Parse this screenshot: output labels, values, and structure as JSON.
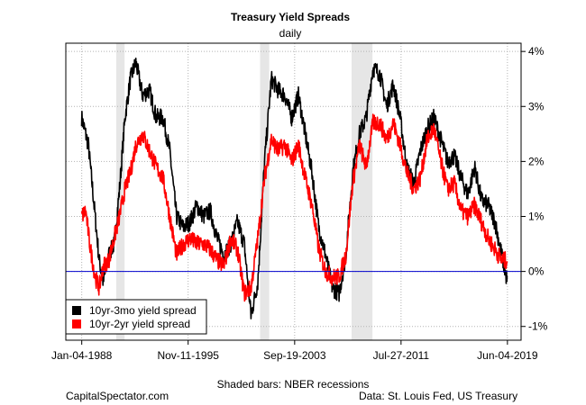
{
  "chart_data": {
    "type": "line",
    "title": "Treasury Yield Spreads",
    "subtitle": "daily",
    "xlabel": "",
    "ylabel": "",
    "x_ticks": [
      "Jan-04-1988",
      "Nov-11-1995",
      "Sep-19-2003",
      "Jul-27-2011",
      "Jun-04-2019"
    ],
    "x_tick_years": [
      1988.01,
      1995.86,
      2003.72,
      2011.57,
      2019.42
    ],
    "xlim": [
      1988.01,
      2019.42
    ],
    "y_ticks": [
      "4%",
      "3%",
      "2%",
      "1%",
      "0%",
      "-1%"
    ],
    "y_tick_values": [
      4,
      3,
      2,
      1,
      0,
      -1
    ],
    "ylim": [
      -1.25,
      4.15
    ],
    "grid": true,
    "legend_position": "bottom-left",
    "recessions": [
      [
        1990.55,
        1991.17
      ],
      [
        2001.17,
        2001.84
      ],
      [
        2007.92,
        2009.46
      ]
    ],
    "series": [
      {
        "name": "10yr-3mo yield spread",
        "color": "#000000",
        "x": [
          1988.0,
          1988.5,
          1989.0,
          1989.3,
          1989.6,
          1990.0,
          1990.4,
          1990.8,
          1991.2,
          1991.6,
          1992.0,
          1992.5,
          1993.0,
          1993.5,
          1994.0,
          1994.5,
          1995.0,
          1995.5,
          1996.0,
          1996.5,
          1997.0,
          1997.5,
          1998.0,
          1998.5,
          1999.0,
          1999.5,
          2000.0,
          2000.5,
          2001.0,
          2001.5,
          2002.0,
          2002.5,
          2003.0,
          2003.5,
          2004.0,
          2004.5,
          2005.0,
          2005.5,
          2006.0,
          2006.5,
          2007.0,
          2007.5,
          2008.0,
          2008.5,
          2009.0,
          2009.5,
          2010.0,
          2010.5,
          2011.0,
          2011.5,
          2012.0,
          2012.5,
          2013.0,
          2013.5,
          2014.0,
          2014.5,
          2015.0,
          2015.5,
          2016.0,
          2016.5,
          2017.0,
          2017.5,
          2018.0,
          2018.5,
          2019.0,
          2019.42
        ],
        "y": [
          2.8,
          2.3,
          1.0,
          0.2,
          -0.2,
          0.3,
          0.5,
          1.5,
          2.8,
          3.5,
          3.8,
          3.2,
          3.3,
          2.8,
          2.8,
          2.2,
          1.0,
          0.8,
          0.9,
          1.2,
          1.0,
          1.1,
          0.6,
          0.3,
          0.5,
          0.9,
          0.5,
          -0.8,
          -0.2,
          2.0,
          3.5,
          3.3,
          3.2,
          2.8,
          3.2,
          2.5,
          1.8,
          0.8,
          0.3,
          -0.3,
          -0.4,
          0.3,
          1.8,
          2.5,
          2.8,
          3.7,
          3.6,
          3.0,
          3.4,
          2.8,
          1.9,
          1.6,
          2.2,
          2.6,
          2.8,
          2.4,
          2.0,
          2.1,
          1.7,
          1.4,
          1.9,
          1.3,
          1.2,
          0.9,
          0.3,
          -0.2
        ]
      },
      {
        "name": "10yr-2yr yield spread",
        "color": "#ff0000",
        "x": [
          1988.0,
          1988.3,
          1988.6,
          1989.0,
          1989.3,
          1989.6,
          1990.0,
          1990.4,
          1990.8,
          1991.2,
          1991.6,
          1992.0,
          1992.5,
          1993.0,
          1993.5,
          1994.0,
          1994.5,
          1995.0,
          1995.5,
          1996.0,
          1996.5,
          1997.0,
          1997.5,
          1998.0,
          1998.5,
          1999.0,
          1999.5,
          2000.0,
          2000.5,
          2001.0,
          2001.5,
          2002.0,
          2002.5,
          2003.0,
          2003.5,
          2004.0,
          2004.5,
          2005.0,
          2005.5,
          2006.0,
          2006.5,
          2007.0,
          2007.5,
          2008.0,
          2008.5,
          2009.0,
          2009.5,
          2010.0,
          2010.5,
          2011.0,
          2011.5,
          2012.0,
          2012.5,
          2013.0,
          2013.5,
          2014.0,
          2014.5,
          2015.0,
          2015.5,
          2016.0,
          2016.5,
          2017.0,
          2017.5,
          2018.0,
          2018.5,
          2019.0,
          2019.42
        ],
        "y": [
          1.0,
          1.1,
          0.5,
          -0.1,
          -0.3,
          0.1,
          0.2,
          0.6,
          1.0,
          1.5,
          1.8,
          2.3,
          2.5,
          2.2,
          1.9,
          1.7,
          1.0,
          0.3,
          0.5,
          0.6,
          0.5,
          0.5,
          0.4,
          0.2,
          0.1,
          0.6,
          0.4,
          -0.4,
          -0.3,
          0.6,
          1.7,
          2.4,
          2.2,
          2.3,
          2.0,
          2.3,
          1.7,
          1.2,
          0.4,
          0.0,
          -0.1,
          -0.1,
          0.3,
          1.6,
          2.3,
          1.9,
          2.7,
          2.7,
          2.4,
          2.7,
          2.3,
          1.8,
          1.5,
          1.7,
          2.4,
          2.6,
          2.0,
          1.5,
          1.6,
          1.1,
          1.0,
          1.2,
          0.9,
          0.6,
          0.4,
          0.2,
          0.2
        ]
      }
    ],
    "zero_line_color": "#0000cd",
    "recession_color": "#e6e6e6",
    "footer_center": "Shaded bars: NBER recessions",
    "footer_left": "CapitalSpectator.com",
    "footer_right": "Data: St. Louis Fed, US Treasury"
  }
}
